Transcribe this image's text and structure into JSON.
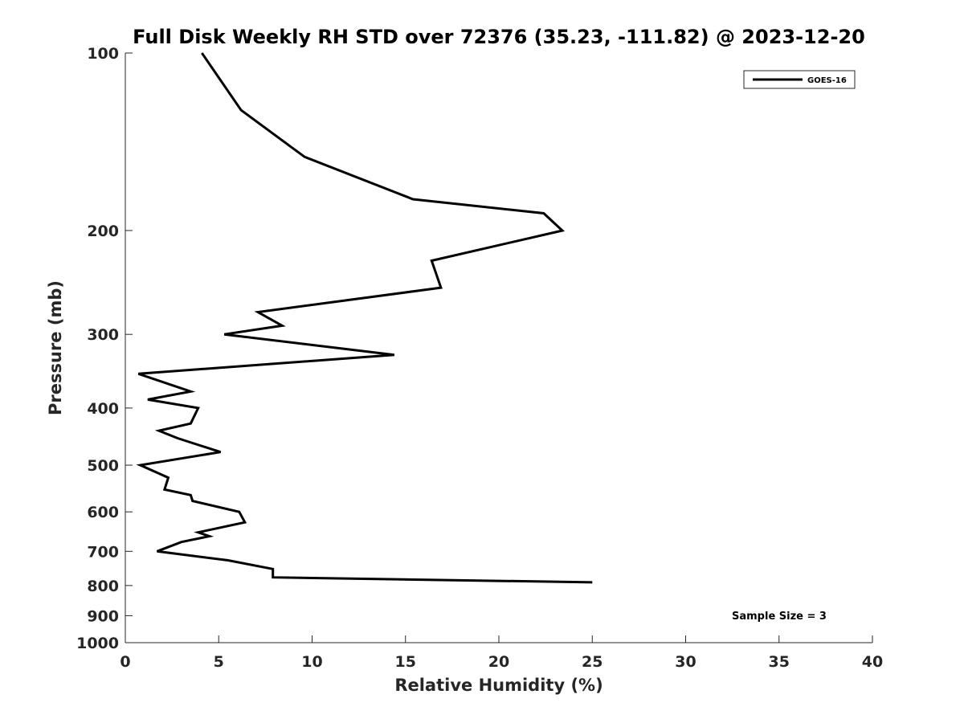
{
  "chart_data": {
    "type": "line",
    "title": "Full Disk Weekly RH STD over 72376 (35.23, -111.82) @ 2023-12-20",
    "xlabel": "Relative Humidity (%)",
    "ylabel": "Pressure (mb)",
    "xlim": [
      0,
      40
    ],
    "ylim": [
      100,
      1000
    ],
    "y_scale": "log",
    "y_reversed": true,
    "grid": false,
    "legend_position": "top-right",
    "x_ticks": [
      0,
      5,
      10,
      15,
      20,
      25,
      30,
      35,
      40
    ],
    "y_ticks": [
      100,
      200,
      300,
      400,
      500,
      600,
      700,
      800,
      900,
      1000
    ],
    "annotation": "Sample Size = 3",
    "series": [
      {
        "name": "GOES-16",
        "color": "#000000",
        "points": [
          [
            4.1,
            100
          ],
          [
            6.2,
            125
          ],
          [
            9.6,
            150
          ],
          [
            15.4,
            177
          ],
          [
            22.4,
            187
          ],
          [
            23.4,
            200
          ],
          [
            16.4,
            225
          ],
          [
            16.9,
            250
          ],
          [
            7.1,
            275
          ],
          [
            8.4,
            290
          ],
          [
            5.3,
            300
          ],
          [
            14.4,
            325
          ],
          [
            0.7,
            350
          ],
          [
            3.5,
            375
          ],
          [
            1.2,
            387
          ],
          [
            3.9,
            400
          ],
          [
            3.5,
            425
          ],
          [
            1.8,
            437
          ],
          [
            2.8,
            450
          ],
          [
            5.1,
            475
          ],
          [
            0.8,
            500
          ],
          [
            2.3,
            525
          ],
          [
            2.1,
            550
          ],
          [
            3.5,
            562
          ],
          [
            3.6,
            575
          ],
          [
            6.1,
            600
          ],
          [
            6.4,
            625
          ],
          [
            3.9,
            650
          ],
          [
            4.5,
            660
          ],
          [
            3.0,
            675
          ],
          [
            1.7,
            700
          ],
          [
            5.5,
            725
          ],
          [
            7.9,
            750
          ],
          [
            7.9,
            775
          ],
          [
            25.0,
            790
          ]
        ]
      }
    ]
  }
}
